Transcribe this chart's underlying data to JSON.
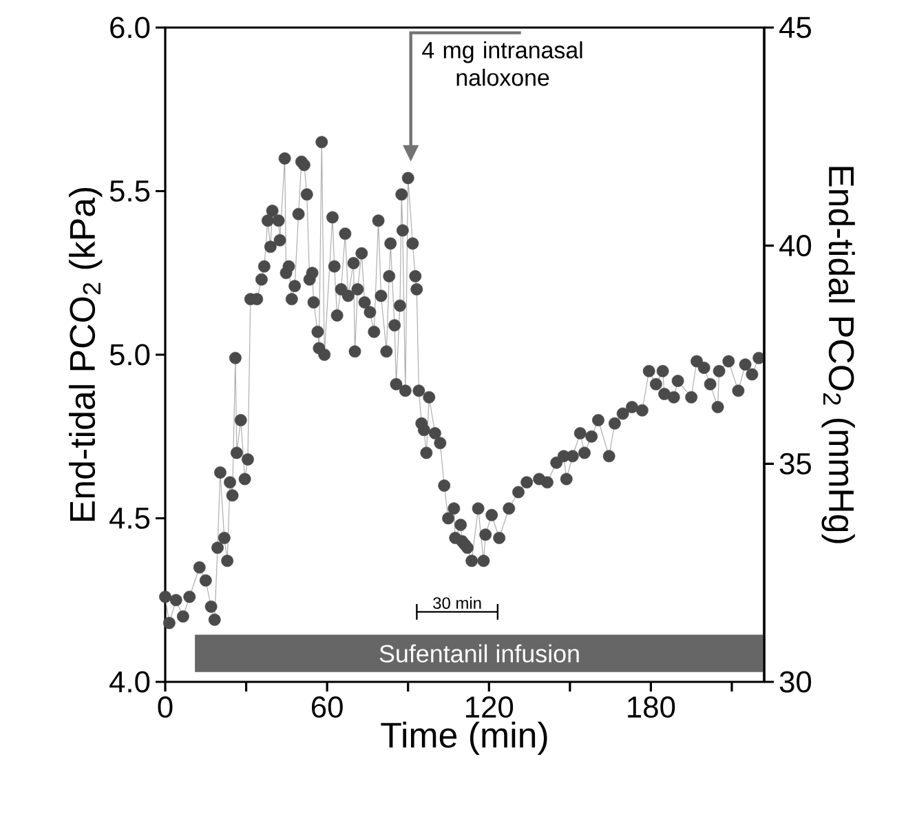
{
  "chart_data": {
    "type": "line",
    "xlabel": "Time (min)",
    "ylabel": "End-tidal PCO$_{2}$ (kPa)",
    "y2label": "End-tidal PCO$_{2}$ (mmHg)",
    "xlim": [
      0,
      222
    ],
    "xticks": [
      0,
      {
        "value": 30,
        "label": null
      },
      60,
      {
        "value": 90,
        "label": null
      },
      120,
      {
        "value": 150,
        "label": null
      },
      180,
      {
        "value": 210,
        "label": null
      }
    ],
    "ylim": [
      4,
      6
    ],
    "yticks": [
      {
        "value": 4,
        "label": "4.0"
      },
      {
        "value": 4.5,
        "label": "4.5"
      },
      {
        "value": 5,
        "label": "5.0"
      },
      {
        "value": 5.5,
        "label": "5.5"
      },
      {
        "value": 6,
        "label": "6.0"
      }
    ],
    "y2lim": [
      30,
      45
    ],
    "y2ticks": [
      30,
      35,
      40,
      45
    ],
    "marker": "circle",
    "x": [
      0,
      1.5,
      4,
      6.6,
      9,
      12.7,
      15,
      17,
      18.3,
      19.4,
      20.4,
      21.9,
      23,
      24,
      24.9,
      26,
      26.5,
      28,
      29.5,
      30.6,
      31.6,
      34,
      35.7,
      36.7,
      38,
      39,
      39.7,
      42,
      42.5,
      44.3,
      44.8,
      45.8,
      46.9,
      48,
      49.4,
      50.5,
      51.5,
      52.5,
      53.5,
      54.5,
      55,
      56.5,
      57,
      58,
      59,
      62,
      62.7,
      63.7,
      65.2,
      66.7,
      67.8,
      69.8,
      70.3,
      71.3,
      72.8,
      73.9,
      75.9,
      77.4,
      79,
      80,
      82,
      83,
      83.5,
      85,
      85.6,
      87,
      87.6,
      88,
      89,
      90,
      91.7,
      92.7,
      93.2,
      94,
      95,
      95.9,
      96.8,
      97.8,
      100,
      101.9,
      103.4,
      104.9,
      107,
      107.5,
      109.5,
      110,
      111,
      112,
      113.6,
      116,
      118,
      118.7,
      121,
      123.8,
      127.4,
      130.9,
      134,
      138.6,
      141.6,
      145,
      147.7,
      148.7,
      151,
      153.8,
      155.4,
      158,
      160.5,
      164.5,
      166.6,
      169.6,
      173,
      176.8,
      179.3,
      181.9,
      184.4,
      185,
      188.5,
      190,
      195,
      197,
      199.7,
      202,
      204.8,
      205.3,
      208.8,
      212.4,
      215,
      217.5,
      220
    ],
    "series": [
      {
        "color": "#4a4a4a",
        "values": [
          4.26,
          4.18,
          4.25,
          4.2,
          4.26,
          4.35,
          4.31,
          4.23,
          4.19,
          4.41,
          4.64,
          4.44,
          4.37,
          4.61,
          4.57,
          4.99,
          4.7,
          4.8,
          4.62,
          4.68,
          5.17,
          5.17,
          5.23,
          5.27,
          5.41,
          5.33,
          5.44,
          5.41,
          5.35,
          5.6,
          5.25,
          5.27,
          5.17,
          5.21,
          5.43,
          5.59,
          5.58,
          5.49,
          5.23,
          5.25,
          5.16,
          5.07,
          5.02,
          5.65,
          5.0,
          5.42,
          5.27,
          5.12,
          5.2,
          5.37,
          5.18,
          5.28,
          5.01,
          5.2,
          5.31,
          5.16,
          5.13,
          5.07,
          5.41,
          5.18,
          5.01,
          5.24,
          5.34,
          5.09,
          4.91,
          5.15,
          5.49,
          5.38,
          4.89,
          5.54,
          5.34,
          5.24,
          5.2,
          4.89,
          4.79,
          4.77,
          4.7,
          4.87,
          4.76,
          4.73,
          4.6,
          4.5,
          4.53,
          4.44,
          4.48,
          4.43,
          4.42,
          4.41,
          4.37,
          4.53,
          4.37,
          4.45,
          4.51,
          4.44,
          4.53,
          4.58,
          4.61,
          4.62,
          4.61,
          4.67,
          4.69,
          4.62,
          4.69,
          4.76,
          4.7,
          4.75,
          4.8,
          4.69,
          4.79,
          4.82,
          4.84,
          4.83,
          4.95,
          4.91,
          4.95,
          4.88,
          4.87,
          4.92,
          4.87,
          4.98,
          4.96,
          4.91,
          4.84,
          4.95,
          4.98,
          4.89,
          4.97,
          4.94,
          4.99
        ]
      }
    ],
    "bands": [
      {
        "axis": "x",
        "from": 11,
        "to": 222,
        "label": "Sufentanil infusion",
        "color": "#666666"
      }
    ],
    "annotations": [
      "4 mg intranasal naloxone",
      "30 min"
    ]
  }
}
